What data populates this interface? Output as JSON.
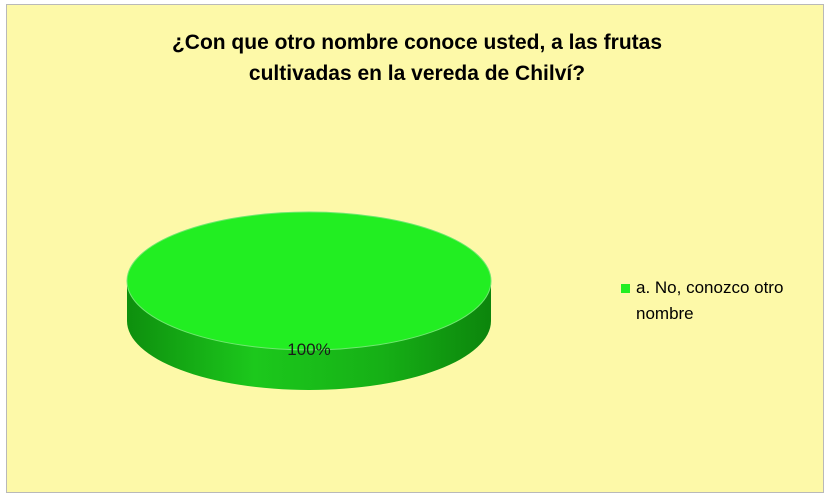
{
  "chart_data": {
    "type": "pie",
    "title_lines": [
      "¿Con que otro nombre conoce usted, a las frutas",
      "cultivadas en la vereda de Chilví?"
    ],
    "slices": [
      {
        "label": "a. No, conozco otro nombre",
        "value": 100,
        "data_label": "100%"
      }
    ],
    "legend_position": "right",
    "style": "3d",
    "colors": {
      "background": "#fdf9a8",
      "slice_top": "#22ee22",
      "slice_side": "#14b414",
      "legend_swatch": "#22ee22"
    }
  }
}
